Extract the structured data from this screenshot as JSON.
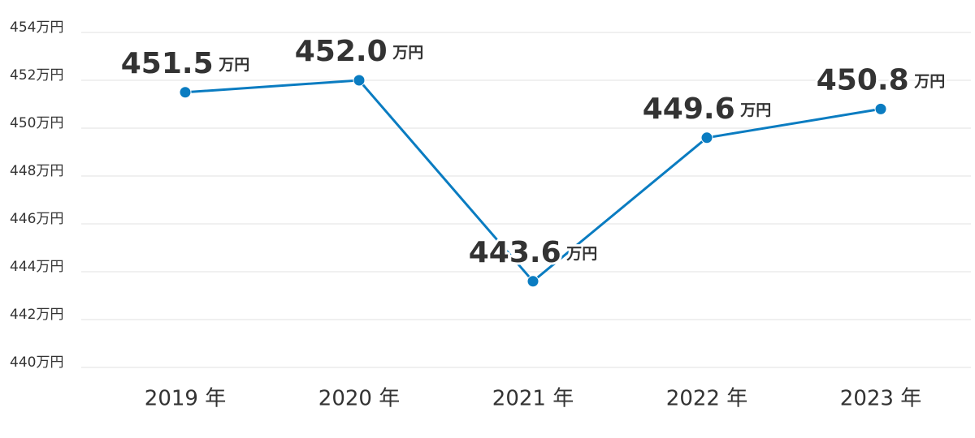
{
  "chart_data": {
    "type": "line",
    "categories": [
      "2019 年",
      "2020 年",
      "2021 年",
      "2022 年",
      "2023 年"
    ],
    "series": [
      {
        "color": "#0a7cc1",
        "values": [
          451.5,
          452.0,
          443.6,
          449.6,
          450.8
        ],
        "value_labels": [
          "451.5 万円",
          "452.0 万円",
          "443.6 万円",
          "449.6 万円",
          "450.8 万円"
        ]
      }
    ],
    "ylim": [
      440,
      454
    ],
    "yticks": [
      {
        "value": 440,
        "label": "440万円"
      },
      {
        "value": 442,
        "label": "442万円"
      },
      {
        "value": 444,
        "label": "444万円"
      },
      {
        "value": 446,
        "label": "446万円"
      },
      {
        "value": 448,
        "label": "448万円"
      },
      {
        "value": 450,
        "label": "450万円"
      },
      {
        "value": 452,
        "label": "452万円"
      },
      {
        "value": 454,
        "label": "454万円"
      }
    ],
    "grid": true
  }
}
